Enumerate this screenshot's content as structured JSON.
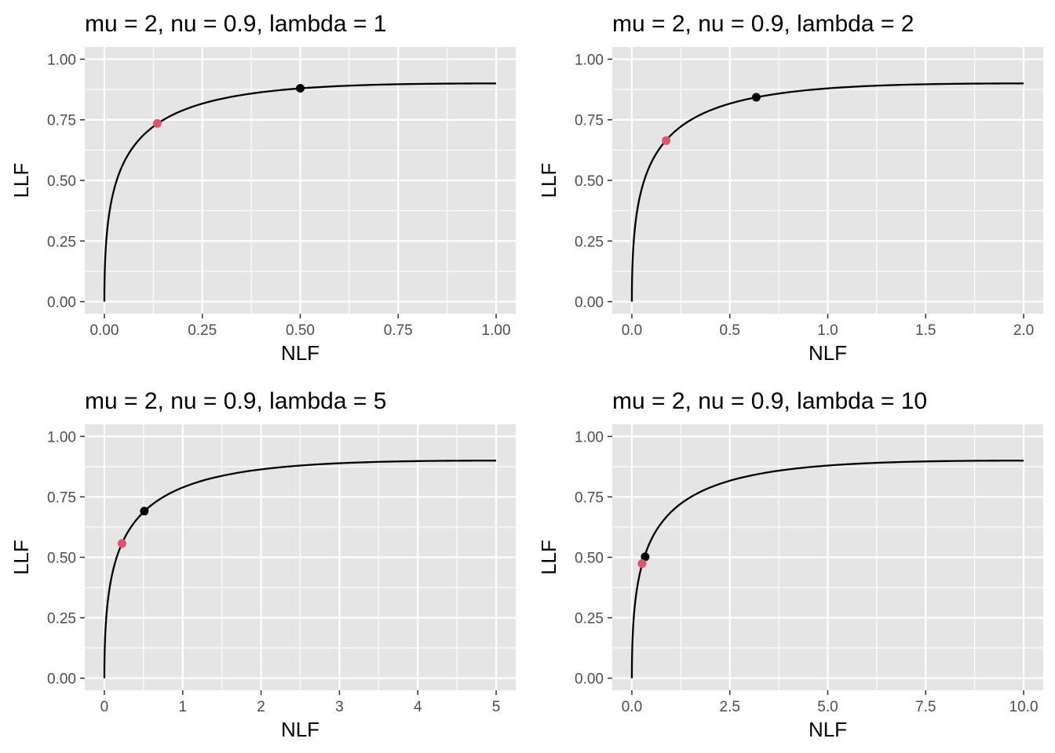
{
  "chart_data": [
    {
      "type": "line",
      "title": "mu = 2, nu = 0.9, lambda = 1",
      "xlabel": "NLF",
      "ylabel": "LLF",
      "xlim": [
        0,
        1
      ],
      "ylim": [
        0,
        1
      ],
      "xticks": [
        0,
        0.25,
        0.5,
        0.75,
        1
      ],
      "xtick_labels": [
        "0.00",
        "0.25",
        "0.50",
        "0.75",
        "1.00"
      ],
      "yticks": [
        0,
        0.25,
        0.5,
        0.75,
        1
      ],
      "ytick_labels": [
        "0.00",
        "0.25",
        "0.50",
        "0.75",
        "1.00"
      ],
      "curve": {
        "mu": 2,
        "nu": 0.9,
        "lambda": 1
      },
      "points": [
        {
          "x": 0.5,
          "y": 0.88,
          "color": "#000000"
        },
        {
          "x": 0.135,
          "y": 0.735,
          "color": "#df536b"
        }
      ],
      "grid": true,
      "legend": "none"
    },
    {
      "type": "line",
      "title": "mu = 2, nu = 0.9, lambda = 2",
      "xlabel": "NLF",
      "ylabel": "LLF",
      "xlim": [
        0,
        2
      ],
      "ylim": [
        0,
        1
      ],
      "xticks": [
        0,
        0.5,
        1,
        1.5,
        2
      ],
      "xtick_labels": [
        "0.0",
        "0.5",
        "1.0",
        "1.5",
        "2.0"
      ],
      "yticks": [
        0,
        0.25,
        0.5,
        0.75,
        1
      ],
      "ytick_labels": [
        "0.00",
        "0.25",
        "0.50",
        "0.75",
        "1.00"
      ],
      "curve": {
        "mu": 2,
        "nu": 0.9,
        "lambda": 2
      },
      "points": [
        {
          "x": 0.635,
          "y": 0.843,
          "color": "#000000"
        },
        {
          "x": 0.175,
          "y": 0.664,
          "color": "#df536b"
        }
      ],
      "grid": true,
      "legend": "none"
    },
    {
      "type": "line",
      "title": "mu = 2, nu = 0.9, lambda = 5",
      "xlabel": "NLF",
      "ylabel": "LLF",
      "xlim": [
        0,
        5
      ],
      "ylim": [
        0,
        1
      ],
      "xticks": [
        0,
        1,
        2,
        3,
        4,
        5
      ],
      "xtick_labels": [
        "0",
        "1",
        "2",
        "3",
        "4",
        "5"
      ],
      "yticks": [
        0,
        0.25,
        0.5,
        0.75,
        1
      ],
      "ytick_labels": [
        "0.00",
        "0.25",
        "0.50",
        "0.75",
        "1.00"
      ],
      "curve": {
        "mu": 2,
        "nu": 0.9,
        "lambda": 5
      },
      "points": [
        {
          "x": 0.51,
          "y": 0.691,
          "color": "#000000"
        },
        {
          "x": 0.225,
          "y": 0.557,
          "color": "#df536b"
        }
      ],
      "grid": true,
      "legend": "none"
    },
    {
      "type": "line",
      "title": "mu = 2, nu = 0.9, lambda = 10",
      "xlabel": "NLF",
      "ylabel": "LLF",
      "xlim": [
        0,
        10
      ],
      "ylim": [
        0,
        1
      ],
      "xticks": [
        0,
        2.5,
        5,
        7.5,
        10
      ],
      "xtick_labels": [
        "0.0",
        "2.5",
        "5.0",
        "7.5",
        "10.0"
      ],
      "yticks": [
        0,
        0.25,
        0.5,
        0.75,
        1
      ],
      "ytick_labels": [
        "0.00",
        "0.25",
        "0.50",
        "0.75",
        "1.00"
      ],
      "curve": {
        "mu": 2,
        "nu": 0.9,
        "lambda": 10
      },
      "points": [
        {
          "x": 0.34,
          "y": 0.502,
          "color": "#000000"
        },
        {
          "x": 0.26,
          "y": 0.474,
          "color": "#df536b"
        }
      ],
      "grid": true,
      "legend": "none"
    }
  ],
  "colors": {
    "panel_background": "#e5e5e5",
    "grid": "#ffffff",
    "curve": "#000000",
    "tick_text": "#4d4d4d",
    "tick_mark": "#333333"
  }
}
